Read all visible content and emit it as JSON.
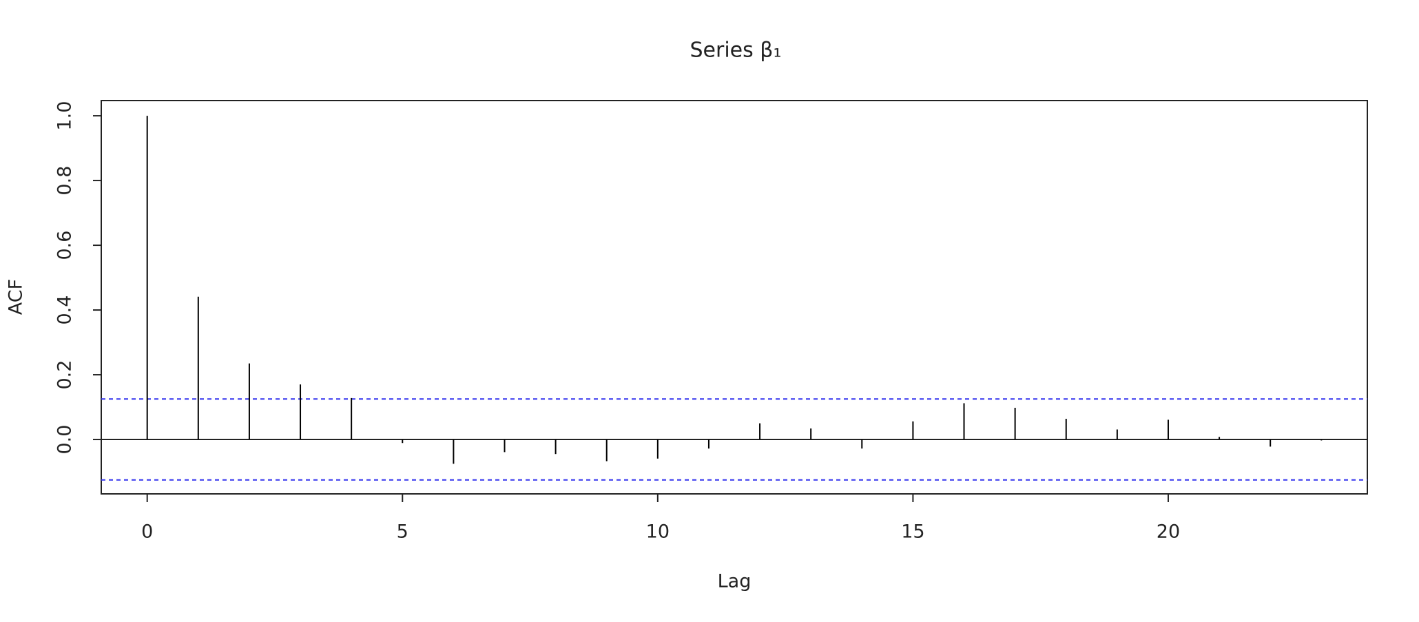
{
  "chart_data": {
    "type": "acf",
    "title": "Series β₁",
    "x_label": "Lag",
    "y_label": "ACF",
    "x": [
      0,
      1,
      2,
      3,
      4,
      5,
      6,
      7,
      8,
      9,
      10,
      11,
      12,
      13,
      14,
      15,
      16,
      17,
      18,
      19,
      20,
      21,
      22,
      23
    ],
    "values": [
      1.0,
      0.441,
      0.235,
      0.17,
      0.128,
      -0.011,
      -0.075,
      -0.039,
      -0.045,
      -0.067,
      -0.059,
      -0.028,
      0.05,
      0.034,
      -0.028,
      0.056,
      0.112,
      0.098,
      0.064,
      0.031,
      0.061,
      0.008,
      -0.022,
      -0.003
    ],
    "color": "#000000",
    "confidence_lines": [
      0.125,
      -0.125
    ],
    "confidence_color": "#3333ee",
    "xlim": [
      -0.9,
      23.9
    ],
    "ylim": [
      -0.168,
      1.047
    ],
    "xticks": [
      0,
      5,
      10,
      15,
      20
    ],
    "yticks": [
      {
        "value": 0,
        "label": "0.0"
      },
      {
        "value": 0.2,
        "label": "0.2"
      },
      {
        "value": 0.4,
        "label": "0.4"
      },
      {
        "value": 0.6,
        "label": "0.6"
      },
      {
        "value": 0.8,
        "label": "0.8"
      },
      {
        "value": 1,
        "label": "1.0"
      }
    ]
  }
}
